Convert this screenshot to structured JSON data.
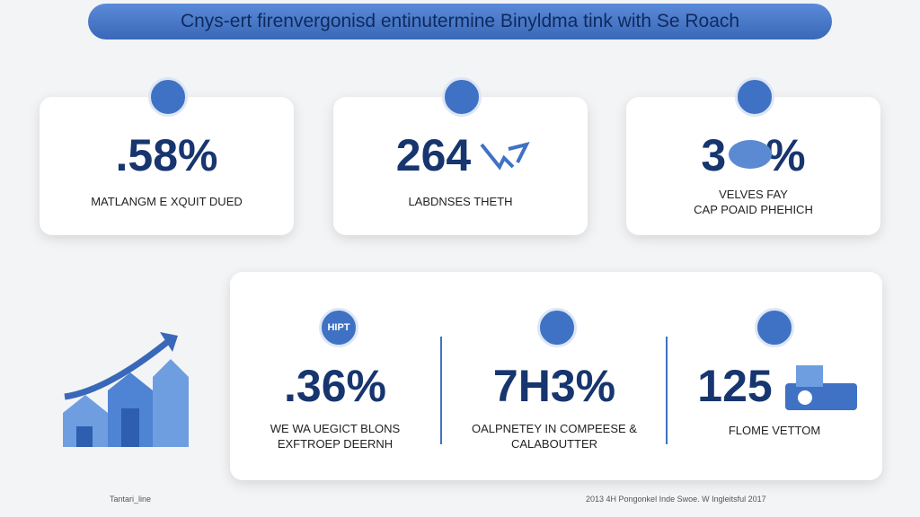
{
  "header": {
    "title": "Cnys-ert firenvergonisd entinutermine Binyldma tink with Se Roach"
  },
  "top_cards": [
    {
      "value": ".58%",
      "label": [
        "MATLANGM E XQUIT DUED"
      ]
    },
    {
      "value": "264",
      "label": [
        "LABDNSES THETH"
      ]
    },
    {
      "value": "3%",
      "label": [
        "VELVES FAY",
        "CAP POAID PHEHICH"
      ]
    }
  ],
  "bottom_panel": {
    "columns": [
      {
        "icon_text": "HIPT",
        "value": ".36%",
        "label": [
          "WE WA UEGICT BLONS",
          "EXFTROEP DEERNH"
        ]
      },
      {
        "value": "7H3%",
        "label": [
          "OALPNETEY IN COMPEESE &",
          "CALABOUTTER"
        ]
      },
      {
        "value": "125",
        "label": [
          "FLOME VETTOM"
        ]
      }
    ]
  },
  "footer": {
    "left": "Tantari_line",
    "right": "2013 4H Pongonkel Inde Swoe. W Ingleitsful 2017"
  }
}
